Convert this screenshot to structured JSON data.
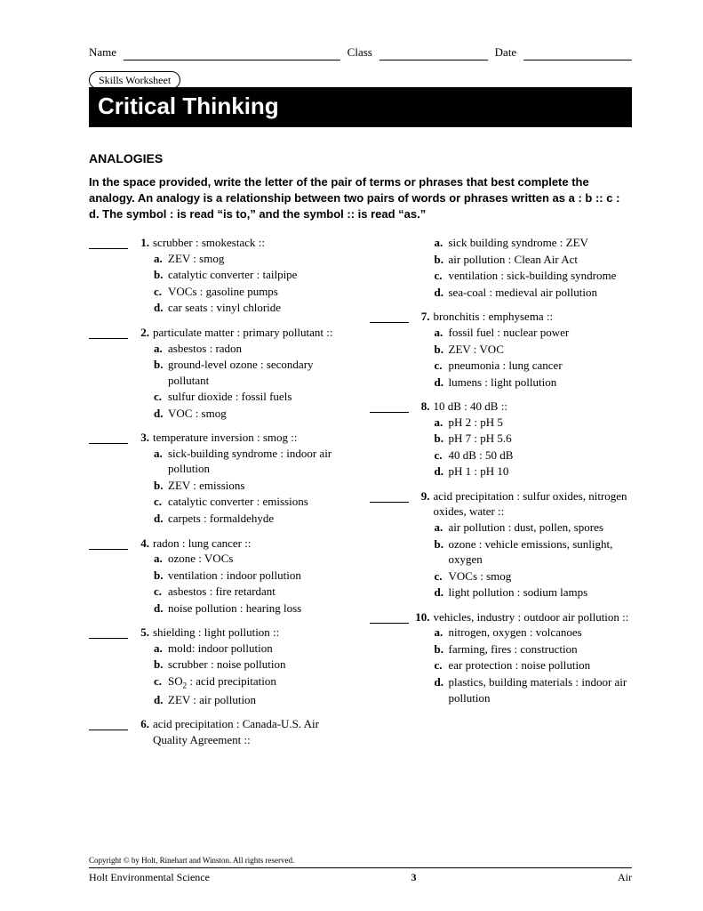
{
  "header": {
    "name_label": "Name",
    "class_label": "Class",
    "date_label": "Date"
  },
  "worksheet_label": "Skills Worksheet",
  "title": "Critical Thinking",
  "section_title": "ANALOGIES",
  "instructions": "In the space provided, write the letter of the pair of terms or phrases that best complete the analogy. An analogy is a relationship between two pairs of words or phrases written as a : b :: c : d. The symbol : is read “is to,” and the symbol :: is read “as.”",
  "left_questions": [
    {
      "n": "1.",
      "stem": "scrubber : smokestack ::",
      "opts": [
        {
          "l": "a.",
          "t": "ZEV : smog"
        },
        {
          "l": "b.",
          "t": "catalytic converter : tailpipe"
        },
        {
          "l": "c.",
          "t": "VOCs : gasoline pumps"
        },
        {
          "l": "d.",
          "t": "car seats : vinyl chloride"
        }
      ]
    },
    {
      "n": "2.",
      "stem": "particulate matter : primary pollutant ::",
      "opts": [
        {
          "l": "a.",
          "t": "asbestos : radon"
        },
        {
          "l": "b.",
          "t": "ground-level ozone : secondary pollutant"
        },
        {
          "l": "c.",
          "t": "sulfur dioxide : fossil fuels"
        },
        {
          "l": "d.",
          "t": "VOC : smog"
        }
      ]
    },
    {
      "n": "3.",
      "stem": "temperature inversion : smog ::",
      "opts": [
        {
          "l": "a.",
          "t": "sick-building syndrome : indoor air pollution"
        },
        {
          "l": "b.",
          "t": "ZEV : emissions"
        },
        {
          "l": "c.",
          "t": "catalytic converter : emissions"
        },
        {
          "l": "d.",
          "t": "carpets : formaldehyde"
        }
      ]
    },
    {
      "n": "4.",
      "stem": "radon : lung cancer ::",
      "opts": [
        {
          "l": "a.",
          "t": "ozone : VOCs"
        },
        {
          "l": "b.",
          "t": "ventilation : indoor pollution"
        },
        {
          "l": "c.",
          "t": "asbestos : fire retardant"
        },
        {
          "l": "d.",
          "t": "noise pollution : hearing loss"
        }
      ]
    },
    {
      "n": "5.",
      "stem": "shielding : light pollution ::",
      "opts": [
        {
          "l": "a.",
          "t": "mold: indoor pollution"
        },
        {
          "l": "b.",
          "t": "scrubber : noise pollution"
        },
        {
          "l": "c.",
          "t": "SO₂ : acid precipitation"
        },
        {
          "l": "d.",
          "t": "ZEV : air pollution"
        }
      ]
    },
    {
      "n": "6.",
      "stem": "acid precipitation : Canada-U.S. Air Quality Agreement ::",
      "opts": []
    }
  ],
  "right_questions": [
    {
      "n": "",
      "stem": "",
      "cont": true,
      "opts": [
        {
          "l": "a.",
          "t": "sick building syndrome : ZEV"
        },
        {
          "l": "b.",
          "t": "air pollution : Clean Air Act"
        },
        {
          "l": "c.",
          "t": "ventilation : sick-building syndrome"
        },
        {
          "l": "d.",
          "t": "sea-coal : medieval air pollution"
        }
      ]
    },
    {
      "n": "7.",
      "stem": "bronchitis : emphysema ::",
      "opts": [
        {
          "l": "a.",
          "t": "fossil fuel : nuclear power"
        },
        {
          "l": "b.",
          "t": "ZEV : VOC"
        },
        {
          "l": "c.",
          "t": "pneumonia : lung cancer"
        },
        {
          "l": "d.",
          "t": "lumens : light pollution"
        }
      ]
    },
    {
      "n": "8.",
      "stem": "10 dB : 40 dB ::",
      "opts": [
        {
          "l": "a.",
          "t": "pH 2 : pH 5"
        },
        {
          "l": "b.",
          "t": "pH 7 : pH 5.6"
        },
        {
          "l": "c.",
          "t": "40 dB : 50 dB"
        },
        {
          "l": "d.",
          "t": "pH 1 : pH 10"
        }
      ]
    },
    {
      "n": "9.",
      "stem": "acid precipitation : sulfur oxides, nitrogen oxides, water ::",
      "opts": [
        {
          "l": "a.",
          "t": "air pollution : dust, pollen, spores"
        },
        {
          "l": "b.",
          "t": "ozone : vehicle emissions, sunlight, oxygen"
        },
        {
          "l": "c.",
          "t": "VOCs : smog"
        },
        {
          "l": "d.",
          "t": "light pollution : sodium lamps"
        }
      ]
    },
    {
      "n": "10.",
      "stem": "vehicles, industry : outdoor air pollution ::",
      "opts": [
        {
          "l": "a.",
          "t": "nitrogen, oxygen : volcanoes"
        },
        {
          "l": "b.",
          "t": "farming, fires : construction"
        },
        {
          "l": "c.",
          "t": "ear protection : noise pollution"
        },
        {
          "l": "d.",
          "t": "plastics, building materials : indoor air pollution"
        }
      ]
    }
  ],
  "footer": {
    "copyright": "Copyright © by Holt, Rinehart and Winston. All rights reserved.",
    "book": "Holt Environmental Science",
    "page": "3",
    "chapter": "Air"
  },
  "colors": {
    "text": "#000000",
    "background": "#ffffff",
    "title_bar_bg": "#000000",
    "title_bar_fg": "#ffffff"
  }
}
